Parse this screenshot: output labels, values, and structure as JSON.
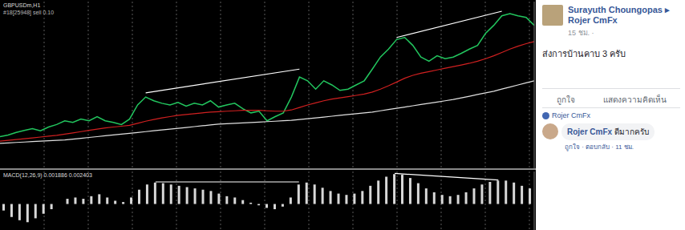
{
  "chart_data": [
    {
      "type": "line",
      "title": "GBPUSDm,H1",
      "subtitle": "#18[25948] sell 0.10",
      "tick_labels": false,
      "grid": true,
      "ylim": [
        1.29,
        1.33
      ],
      "categories": [
        null,
        null,
        null,
        null,
        null,
        null,
        null,
        null,
        null,
        null,
        null,
        null,
        null,
        null,
        null,
        null,
        null,
        null,
        null,
        null,
        null,
        null,
        null,
        null,
        null,
        null,
        null,
        null,
        null,
        null,
        null,
        null,
        null,
        null,
        null,
        null,
        null,
        null,
        null,
        null,
        null,
        null,
        null,
        null,
        null,
        null,
        null,
        null,
        null,
        null,
        null,
        null,
        null,
        null,
        null,
        null,
        null,
        null,
        null,
        null,
        null,
        null,
        null,
        null,
        null,
        null,
        null
      ],
      "series": [
        {
          "color": "#22c55e",
          "type": "line",
          "values": [
            1.2976,
            1.298,
            1.2986,
            1.2991,
            1.2995,
            1.299,
            1.2999,
            1.3005,
            1.3014,
            1.301,
            1.3018,
            1.3014,
            1.3024,
            1.3014,
            1.301,
            1.3005,
            1.3018,
            1.3052,
            1.3071,
            1.3062,
            1.3056,
            1.3052,
            1.3058,
            1.3049,
            1.3056,
            1.3052,
            1.3062,
            1.3047,
            1.3052,
            1.3056,
            1.3043,
            1.3033,
            1.3037,
            1.3014,
            1.3024,
            1.3033,
            1.3071,
            1.3119,
            1.311,
            1.309,
            1.311,
            1.31,
            1.3087,
            1.309,
            1.31,
            1.311,
            1.3138,
            1.3167,
            1.3186,
            1.3209,
            1.3214,
            1.3195,
            1.3167,
            1.3157,
            1.317,
            1.3163,
            1.3167,
            1.3176,
            1.3186,
            1.3195,
            1.3224,
            1.3243,
            1.3266,
            1.3271,
            1.3266,
            1.3262,
            1.3243
          ]
        },
        {
          "color": "#d02020",
          "type": "line",
          "values": [
            1.2965,
            1.2967,
            1.2969,
            1.2971,
            1.2973,
            1.2975,
            1.2977,
            1.2979,
            1.2982,
            1.2985,
            1.2988,
            1.2991,
            1.2994,
            1.2997,
            1.2999,
            1.3001,
            1.3003,
            1.3008,
            1.3013,
            1.3017,
            1.3021,
            1.3024,
            1.3027,
            1.3029,
            1.3031,
            1.3033,
            1.3035,
            1.3036,
            1.3037,
            1.3038,
            1.3039,
            1.3039,
            1.3039,
            1.3038,
            1.3037,
            1.3037,
            1.304,
            1.3046,
            1.3052,
            1.3057,
            1.3062,
            1.3066,
            1.3069,
            1.3072,
            1.3075,
            1.3078,
            1.3083,
            1.309,
            1.3098,
            1.3107,
            1.3116,
            1.3123,
            1.3128,
            1.3132,
            1.3136,
            1.314,
            1.3144,
            1.3148,
            1.3152,
            1.3157,
            1.3163,
            1.317,
            1.3178,
            1.3186,
            1.3193,
            1.3199,
            1.3204
          ]
        },
        {
          "color": "#e0e0e0",
          "type": "line",
          "values": [
            1.296,
            1.2961,
            1.2962,
            1.2963,
            1.2964,
            1.2965,
            1.2966,
            1.2967,
            1.2968,
            1.297,
            1.2972,
            1.2974,
            1.2976,
            1.2978,
            1.298,
            1.2982,
            1.2984,
            1.2986,
            1.2988,
            1.299,
            1.2992,
            1.2994,
            1.2996,
            1.2998,
            1.3,
            1.3002,
            1.3004,
            1.3006,
            1.3007,
            1.3008,
            1.3009,
            1.301,
            1.3011,
            1.3012,
            1.3013,
            1.3014,
            1.3015,
            1.3017,
            1.3019,
            1.3021,
            1.3023,
            1.3025,
            1.3027,
            1.3029,
            1.3031,
            1.3033,
            1.3035,
            1.3038,
            1.3041,
            1.3044,
            1.3047,
            1.305,
            1.3053,
            1.3056,
            1.3059,
            1.3062,
            1.3065,
            1.3069,
            1.3073,
            1.3077,
            1.3081,
            1.3085,
            1.309,
            1.3095,
            1.31,
            1.3105,
            1.311
          ]
        },
        {
          "color": "#ffffff",
          "type": "line",
          "values": [
            null,
            null,
            null,
            null,
            null,
            null,
            null,
            null,
            null,
            null,
            null,
            null,
            null,
            null,
            null,
            null,
            null,
            null,
            1.3081,
            null,
            null,
            null,
            null,
            null,
            null,
            null,
            null,
            null,
            null,
            null,
            null,
            null,
            null,
            null,
            null,
            null,
            null,
            1.3138,
            null,
            null,
            null,
            null,
            null,
            null,
            null,
            null,
            null,
            null,
            null,
            null,
            null,
            null,
            null,
            null,
            null,
            null,
            null,
            null,
            null,
            null,
            null,
            null,
            null,
            null,
            null,
            null,
            null
          ]
        },
        {
          "color": "#ffffff",
          "type": "line",
          "values": [
            null,
            null,
            null,
            null,
            null,
            null,
            null,
            null,
            null,
            null,
            null,
            null,
            null,
            null,
            null,
            null,
            null,
            null,
            null,
            null,
            null,
            null,
            null,
            null,
            null,
            null,
            null,
            null,
            null,
            null,
            null,
            null,
            null,
            null,
            null,
            null,
            null,
            null,
            null,
            null,
            null,
            null,
            null,
            null,
            null,
            null,
            null,
            null,
            null,
            1.3214,
            null,
            null,
            null,
            null,
            null,
            null,
            null,
            null,
            null,
            null,
            null,
            null,
            1.3277,
            null,
            null,
            null,
            null
          ]
        }
      ]
    },
    {
      "type": "bar",
      "title": "MACD(12,26,9) 0.001886 0.002403",
      "tick_labels": false,
      "grid": true,
      "ylim": [
        -0.004,
        0.005
      ],
      "categories": [
        null,
        null,
        null,
        null,
        null,
        null,
        null,
        null,
        null,
        null,
        null,
        null,
        null,
        null,
        null,
        null,
        null,
        null,
        null,
        null,
        null,
        null,
        null,
        null,
        null,
        null,
        null,
        null,
        null,
        null,
        null,
        null,
        null,
        null,
        null,
        null,
        null,
        null,
        null,
        null,
        null,
        null,
        null,
        null,
        null,
        null,
        null,
        null,
        null,
        null,
        null,
        null,
        null,
        null,
        null,
        null,
        null,
        null,
        null,
        null,
        null,
        null,
        null,
        null,
        null,
        null,
        null
      ],
      "series": [
        {
          "color": "#d8d8d8",
          "type": "bar",
          "values": [
            -0.001,
            -0.002,
            -0.0025,
            -0.0028,
            -0.0022,
            -0.0015,
            -0.0008,
            0.0,
            0.0008,
            0.001,
            0.0008,
            0.0012,
            0.0015,
            0.001,
            0.0005,
            0.0003,
            0.001,
            0.0022,
            0.003,
            0.0033,
            0.0032,
            0.003,
            0.0028,
            0.0026,
            0.0024,
            0.0022,
            0.002,
            0.0016,
            0.0012,
            0.001,
            0.0006,
            0.0002,
            -0.0002,
            -0.0006,
            -0.0008,
            -0.0004,
            0.001,
            0.003,
            0.0033,
            0.003,
            0.0025,
            0.002,
            0.0016,
            0.0014,
            0.0016,
            0.002,
            0.0028,
            0.0036,
            0.0042,
            0.0046,
            0.0045,
            0.004,
            0.0032,
            0.0024,
            0.0018,
            0.0014,
            0.0012,
            0.0014,
            0.0018,
            0.0024,
            0.003,
            0.0034,
            0.0036,
            0.0036,
            0.0033,
            0.0028,
            0.0024
          ]
        },
        {
          "color": "#ffffff",
          "type": "line",
          "values": [
            null,
            null,
            null,
            null,
            null,
            null,
            null,
            null,
            null,
            null,
            null,
            null,
            null,
            null,
            null,
            null,
            null,
            null,
            null,
            0.0034,
            null,
            null,
            null,
            null,
            null,
            null,
            null,
            null,
            null,
            null,
            null,
            null,
            null,
            null,
            null,
            null,
            null,
            0.0034,
            null,
            null,
            null,
            null,
            null,
            null,
            null,
            null,
            null,
            null,
            null,
            null,
            null,
            null,
            null,
            null,
            null,
            null,
            null,
            null,
            null,
            null,
            null,
            null,
            null,
            null,
            null,
            null,
            null
          ]
        },
        {
          "color": "#ffffff",
          "type": "line",
          "values": [
            null,
            null,
            null,
            null,
            null,
            null,
            null,
            null,
            null,
            null,
            null,
            null,
            null,
            null,
            null,
            null,
            null,
            null,
            null,
            null,
            null,
            null,
            null,
            null,
            null,
            null,
            null,
            null,
            null,
            null,
            null,
            null,
            null,
            null,
            null,
            null,
            null,
            null,
            null,
            null,
            null,
            null,
            null,
            null,
            null,
            null,
            null,
            null,
            null,
            0.0047,
            null,
            null,
            null,
            null,
            null,
            null,
            null,
            null,
            null,
            null,
            null,
            null,
            0.0037,
            null,
            null,
            null,
            null
          ]
        }
      ]
    }
  ],
  "post": {
    "author": "Surayuth Choungopas",
    "separator": "▸",
    "target": "Rojer CmFx",
    "time": "15 ชม. ·",
    "text": "ส่งการบ้านคาบ 3 ครับ",
    "actions": [
      "ถูกใจ",
      "แสดงความคิดเห็น"
    ],
    "liked_by": "Rojer CmFx",
    "comment": {
      "author": "Rojer CmFx",
      "text": "ดีมากครับ",
      "actions": "ถูกใจ · ตอบกลับ · 11 ชม."
    }
  }
}
